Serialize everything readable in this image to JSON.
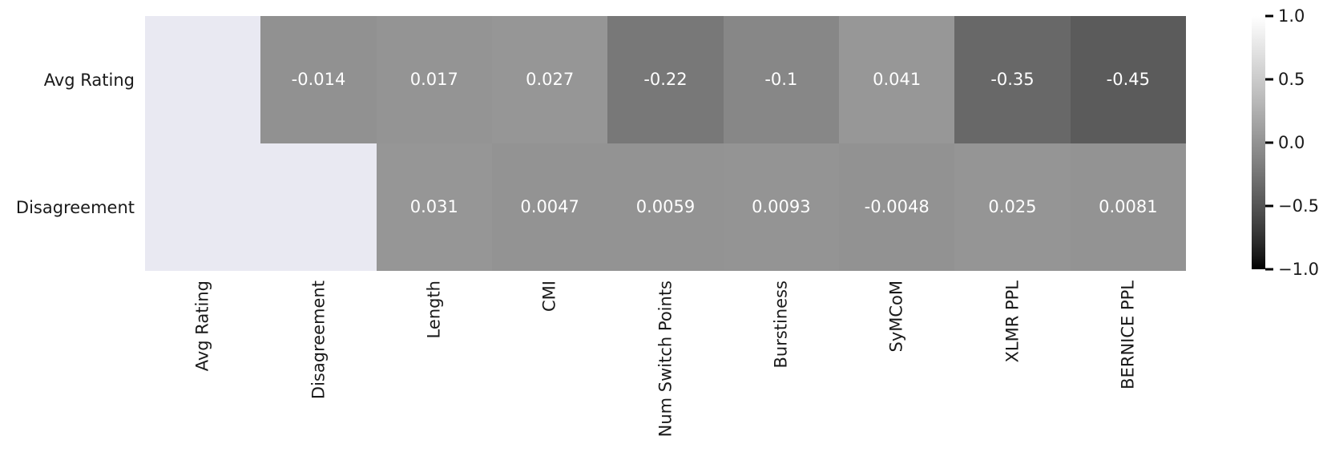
{
  "chart_data": {
    "type": "heatmap",
    "rows": [
      "Avg Rating",
      "Disagreement"
    ],
    "columns": [
      "Avg Rating",
      "Disagreement",
      "Length",
      "CMI",
      "Num Switch Points",
      "Burstiness",
      "SyMCoM",
      "XLMR PPL",
      "BERNICE PPL"
    ],
    "values": [
      [
        null,
        -0.014,
        0.017,
        0.027,
        -0.22,
        -0.1,
        0.041,
        -0.35,
        -0.45
      ],
      [
        null,
        null,
        0.031,
        0.0047,
        0.0059,
        0.0093,
        -0.0048,
        0.025,
        0.0081
      ]
    ],
    "labels": [
      [
        "",
        "-0.014",
        "0.017",
        "0.027",
        "-0.22",
        "-0.1",
        "0.041",
        "-0.35",
        "-0.45"
      ],
      [
        "",
        "",
        "0.031",
        "0.0047",
        "0.0059",
        "0.0093",
        "-0.0048",
        "0.025",
        "0.0081"
      ]
    ],
    "colormap": {
      "name": "gray",
      "vmin": -1,
      "vmax": 1,
      "gamma": 0.8,
      "masked_color": "#e9e9f2",
      "annotation_color": "#ffffff"
    },
    "colorbar": {
      "position": "right",
      "ticks": [
        "1.0",
        "0.5",
        "0.0",
        "−0.5",
        "−1.0"
      ],
      "tick_values": [
        1.0,
        0.5,
        0.0,
        -0.5,
        -1.0
      ]
    },
    "title": "",
    "xlabel": "",
    "ylabel": "",
    "grid": false
  },
  "colors": {
    "background": "#ffffff",
    "text": "#1a1a1a",
    "tick_mark": "#000000"
  }
}
